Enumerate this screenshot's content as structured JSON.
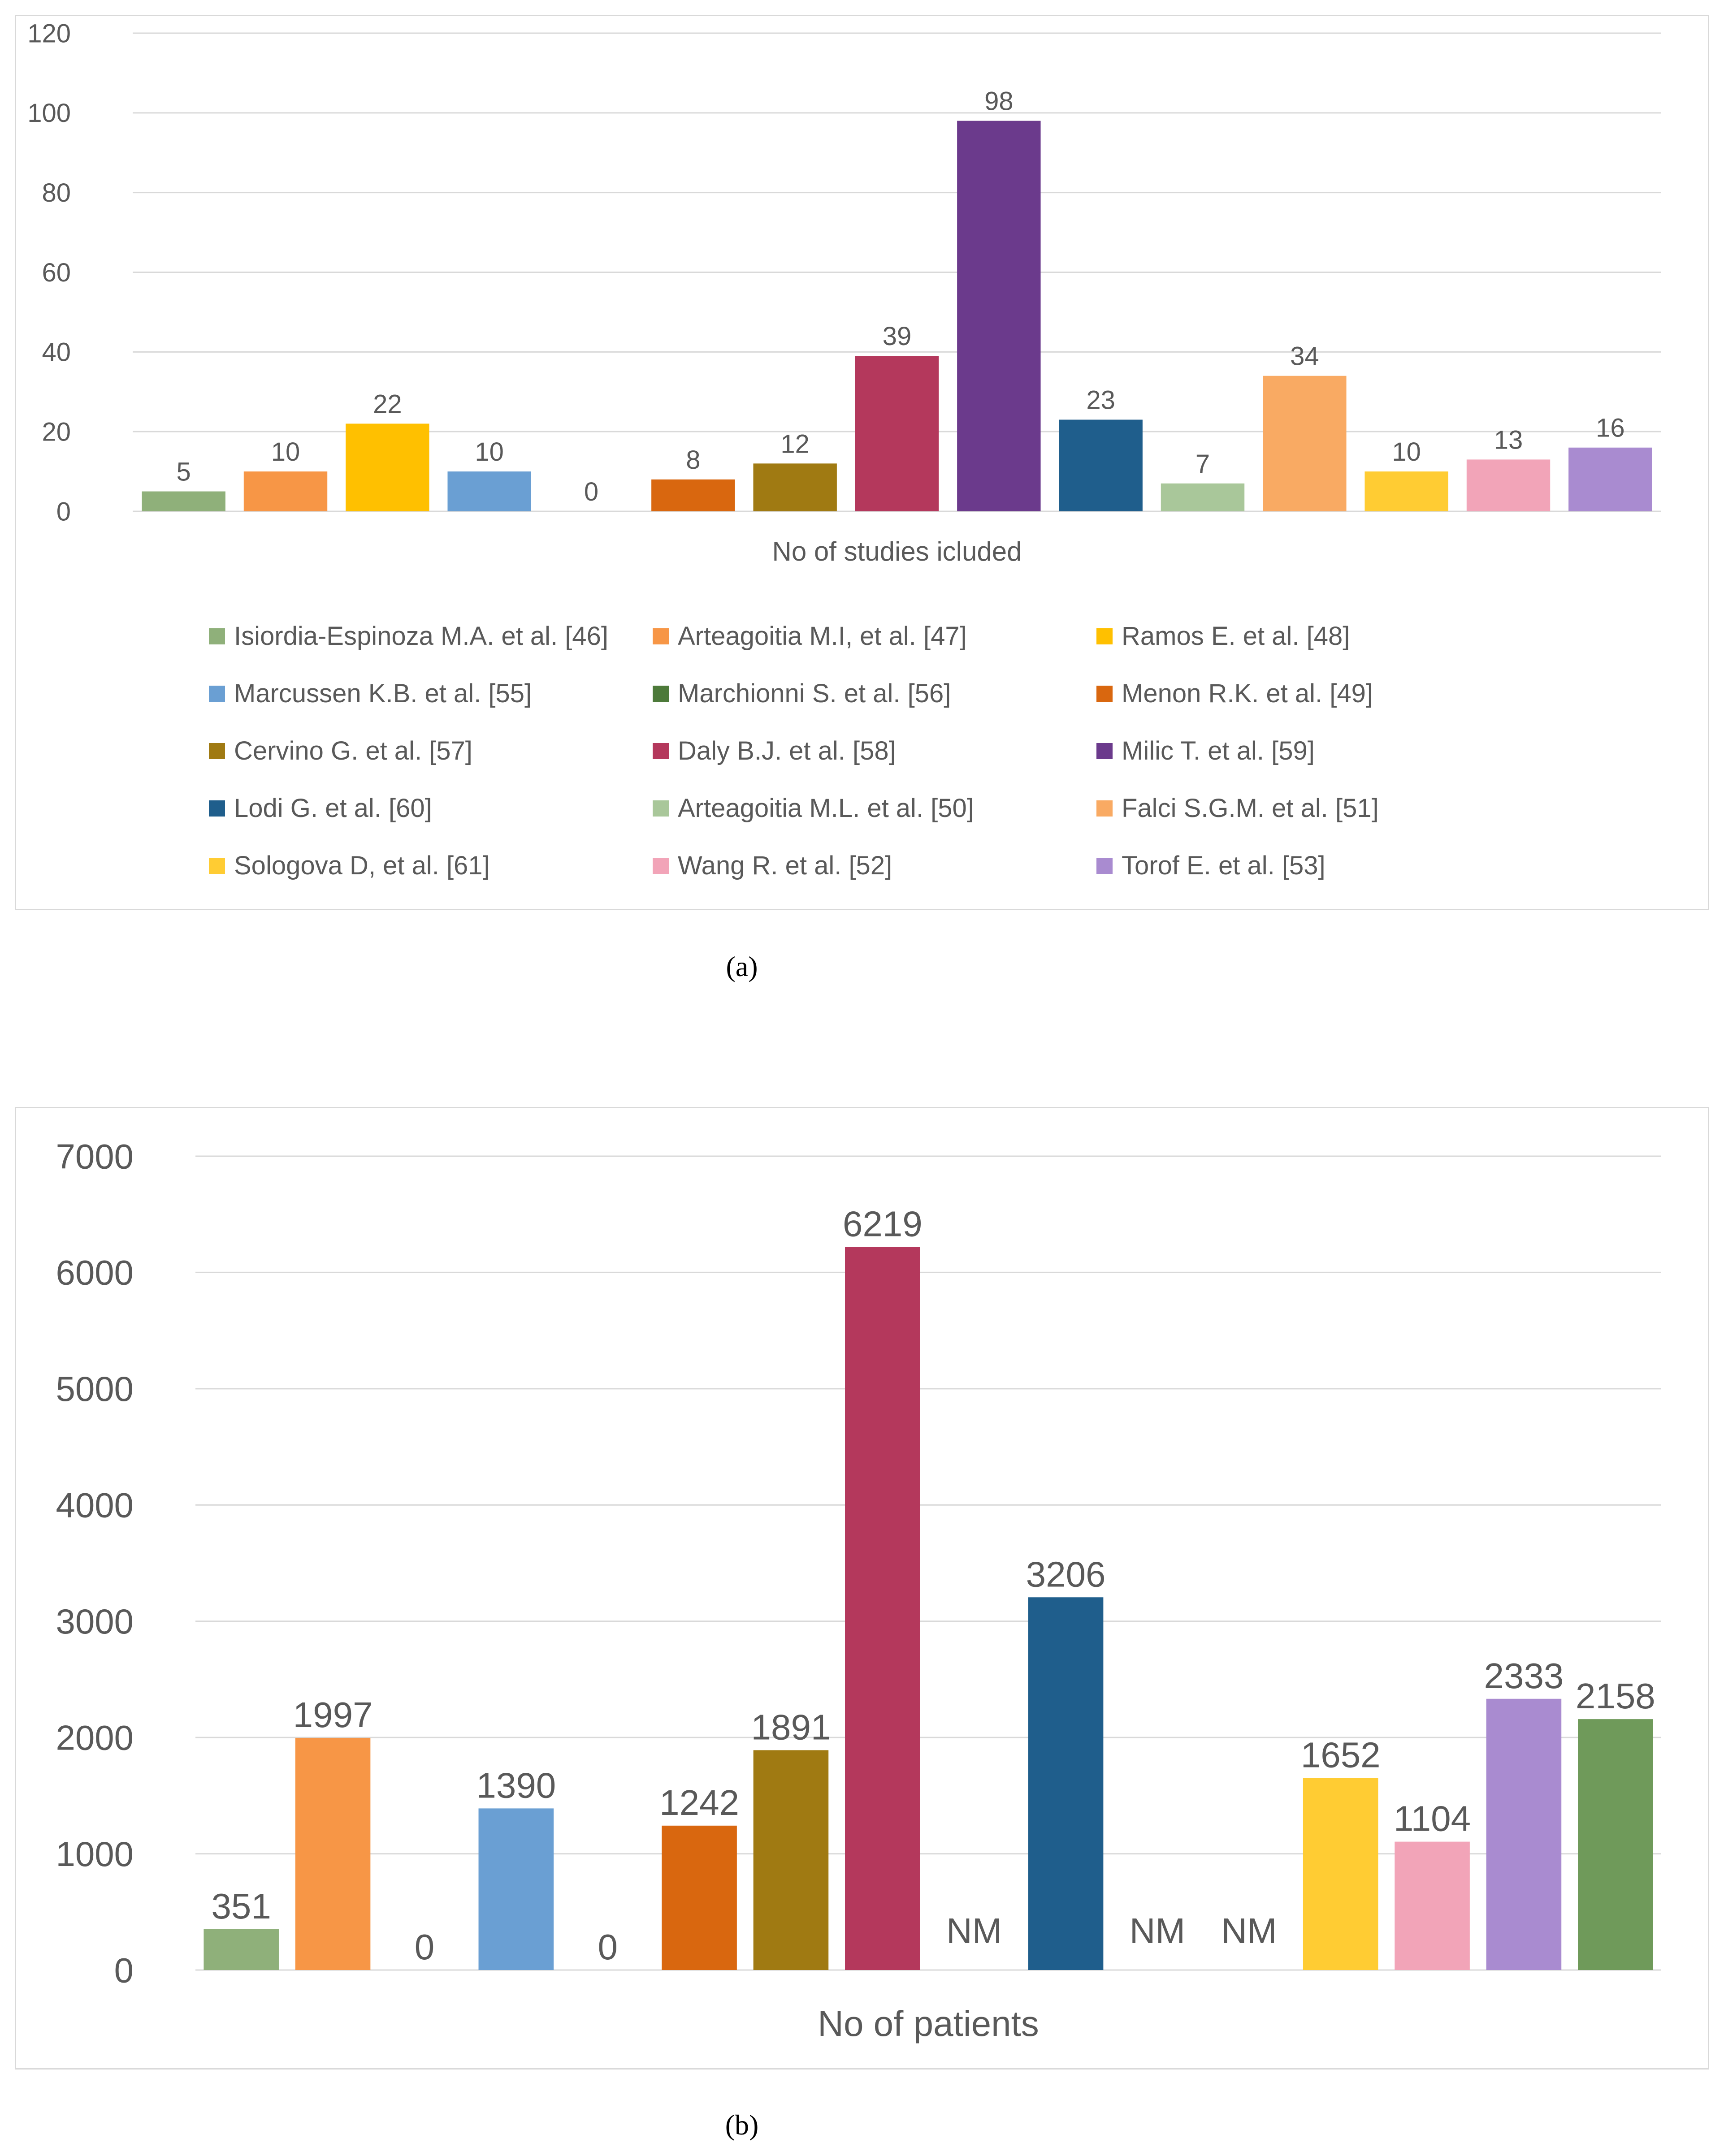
{
  "chart_data": [
    {
      "type": "bar",
      "panel_label": "(a)",
      "title": "",
      "xlabel": "No of studies icluded",
      "ylabel": "",
      "ylim": [
        0,
        120
      ],
      "yticks": [
        0,
        20,
        40,
        60,
        80,
        100,
        120
      ],
      "grid": true,
      "legend_position": "bottom",
      "categories": [
        "Isiordia-Espinoza M.A. et al. [46]",
        "Arteagoitia M.I, et al. [47]",
        "Ramos E. et al. [48]",
        "Marcussen K.B. et al. [55]",
        "Marchionni S.  et al. [56]",
        "Menon R.K. et al. [49]",
        "Cervino G. et al. [57]",
        "Daly B.J. et al. [58]",
        "Milic T. et al. [59]",
        "Lodi G. et al. [60]",
        "Arteagoitia M.L. et al. [50]",
        "Falci S.G.M. et al. [51]",
        "Sologova D, et al. [61]",
        "Wang R. et al. [52]",
        "Torof E. et al. [53]"
      ],
      "values": [
        5,
        10,
        22,
        10,
        0,
        8,
        12,
        39,
        98,
        23,
        7,
        34,
        10,
        13,
        16
      ],
      "data_labels": [
        "5",
        "10",
        "22",
        "10",
        "0",
        "8",
        "12",
        "39",
        "98",
        "23",
        "7",
        "34",
        "10",
        "13",
        "16"
      ],
      "colors": [
        "#8fb07a",
        "#f79646",
        "#ffc000",
        "#6a9fd3",
        "#4d7a3a",
        "#d9670f",
        "#a07a12",
        "#b4385c",
        "#6b3a8c",
        "#1f5e8c",
        "#a9c79a",
        "#f9aa63",
        "#ffcc33",
        "#f2a4b8",
        "#a98bd0"
      ]
    },
    {
      "type": "bar",
      "panel_label": "(b)",
      "title": "",
      "xlabel": "No of patients",
      "ylabel": "",
      "ylim": [
        0,
        7000
      ],
      "yticks": [
        0,
        1000,
        2000,
        3000,
        4000,
        5000,
        6000,
        7000
      ],
      "grid": true,
      "values": [
        351,
        1997,
        0,
        1390,
        0,
        1242,
        1891,
        6219,
        null,
        3206,
        null,
        null,
        1652,
        1104,
        2333,
        2158
      ],
      "data_labels": [
        "351",
        "1997",
        "0",
        "1390",
        "0",
        "1242",
        "1891",
        "6219",
        "NM",
        "3206",
        "NM",
        "NM",
        "1652",
        "1104",
        "2333",
        "2158"
      ],
      "colors": [
        "#8fb07a",
        "#f79646",
        "#f79646",
        "#6a9fd3",
        "#6a9fd3",
        "#d9670f",
        "#a07a12",
        "#b4385c",
        "#6b3a8c",
        "#1f5e8c",
        "#a9c79a",
        "#f9aa63",
        "#ffcc33",
        "#f2a4b8",
        "#a98bd0",
        "#6f9a5a"
      ]
    }
  ]
}
